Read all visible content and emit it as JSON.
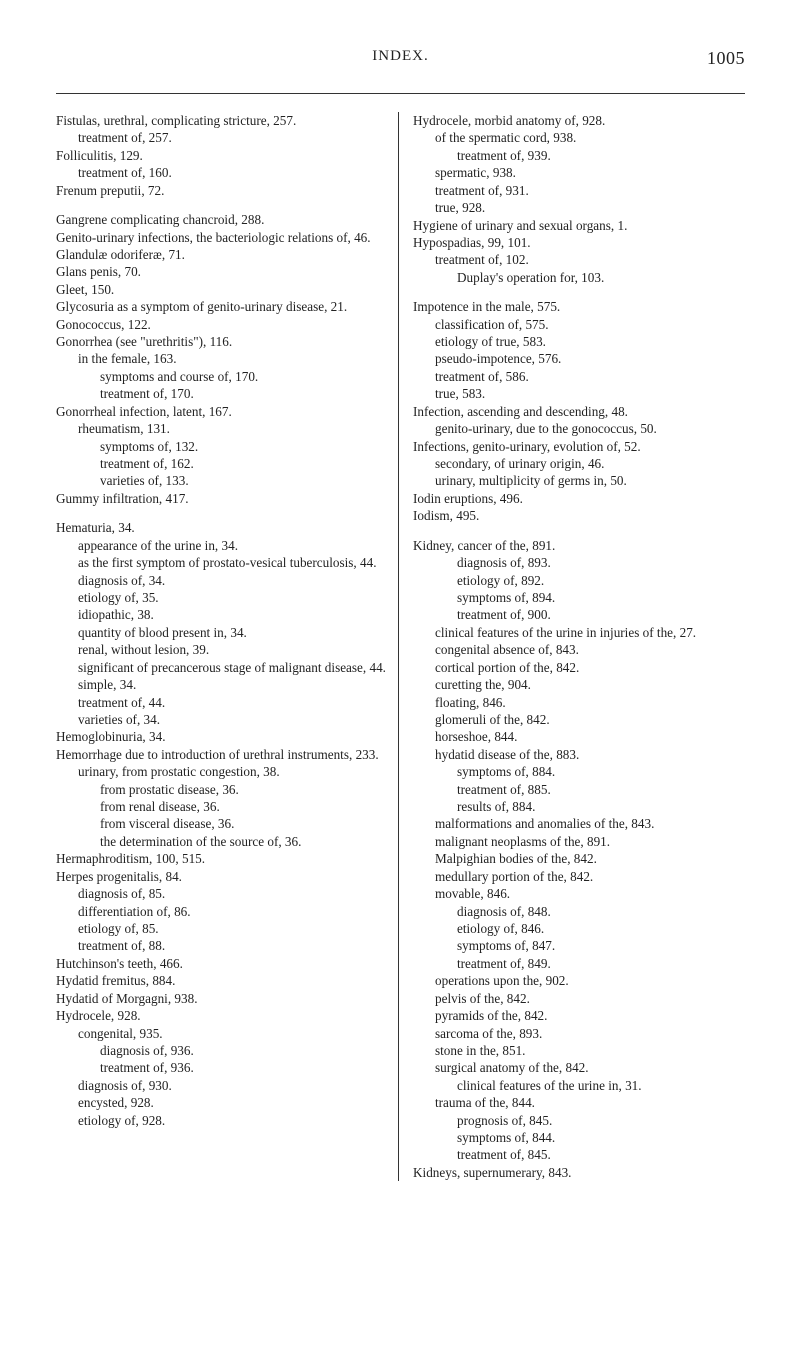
{
  "header": {
    "title": "INDEX.",
    "page_number": "1005"
  },
  "left_column": [
    {
      "text": "Fistulas, urethral, complicating stricture, 257.",
      "level": 0
    },
    {
      "text": "treatment of, 257.",
      "level": 1
    },
    {
      "text": "Folliculitis, 129.",
      "level": 0
    },
    {
      "text": "treatment of, 160.",
      "level": 1
    },
    {
      "text": "Frenum preputii, 72.",
      "level": 0
    },
    {
      "text": "",
      "level": 0,
      "gap": true
    },
    {
      "text": "Gangrene complicating chancroid, 288.",
      "level": 0
    },
    {
      "text": "Genito-urinary infections, the bacteriologic relations of, 46.",
      "level": 0
    },
    {
      "text": "Glandulæ odoriferæ, 71.",
      "level": 0
    },
    {
      "text": "Glans penis, 70.",
      "level": 0
    },
    {
      "text": "Gleet, 150.",
      "level": 0
    },
    {
      "text": "Glycosuria as a symptom of genito-urinary disease, 21.",
      "level": 0
    },
    {
      "text": "Gonococcus, 122.",
      "level": 0
    },
    {
      "text": "Gonorrhea (see \"urethritis\"), 116.",
      "level": 0
    },
    {
      "text": "in the female, 163.",
      "level": 1
    },
    {
      "text": "symptoms and course of, 170.",
      "level": 2
    },
    {
      "text": "treatment of, 170.",
      "level": 2
    },
    {
      "text": "Gonorrheal infection, latent, 167.",
      "level": 0
    },
    {
      "text": "rheumatism, 131.",
      "level": 1
    },
    {
      "text": "symptoms of, 132.",
      "level": 2
    },
    {
      "text": "treatment of, 162.",
      "level": 2
    },
    {
      "text": "varieties of, 133.",
      "level": 2
    },
    {
      "text": "Gummy infiltration, 417.",
      "level": 0
    },
    {
      "text": "",
      "level": 0,
      "gap": true
    },
    {
      "text": "Hematuria, 34.",
      "level": 0
    },
    {
      "text": "appearance of the urine in, 34.",
      "level": 1
    },
    {
      "text": "as the first symptom of prostato-vesical tuberculosis, 44.",
      "level": 1
    },
    {
      "text": "diagnosis of, 34.",
      "level": 1
    },
    {
      "text": "etiology of, 35.",
      "level": 1
    },
    {
      "text": "idiopathic, 38.",
      "level": 1
    },
    {
      "text": "quantity of blood present in, 34.",
      "level": 1
    },
    {
      "text": "renal, without lesion, 39.",
      "level": 1
    },
    {
      "text": "significant of precancerous stage of malignant disease, 44.",
      "level": 1
    },
    {
      "text": "simple, 34.",
      "level": 1
    },
    {
      "text": "treatment of, 44.",
      "level": 1
    },
    {
      "text": "varieties of, 34.",
      "level": 1
    },
    {
      "text": "Hemoglobinuria, 34.",
      "level": 0
    },
    {
      "text": "Hemorrhage due to introduction of urethral instruments, 233.",
      "level": 0
    },
    {
      "text": "urinary, from prostatic congestion, 38.",
      "level": 1
    },
    {
      "text": "from prostatic disease, 36.",
      "level": 2
    },
    {
      "text": "from renal disease, 36.",
      "level": 2
    },
    {
      "text": "from visceral disease, 36.",
      "level": 2
    },
    {
      "text": "the determination of the source of, 36.",
      "level": 2
    },
    {
      "text": "Hermaphroditism, 100, 515.",
      "level": 0
    },
    {
      "text": "Herpes progenitalis, 84.",
      "level": 0
    },
    {
      "text": "diagnosis of, 85.",
      "level": 1
    },
    {
      "text": "differentiation of, 86.",
      "level": 1
    },
    {
      "text": "etiology of, 85.",
      "level": 1
    },
    {
      "text": "treatment of, 88.",
      "level": 1
    },
    {
      "text": "Hutchinson's teeth, 466.",
      "level": 0
    },
    {
      "text": "Hydatid fremitus, 884.",
      "level": 0
    },
    {
      "text": "Hydatid of Morgagni, 938.",
      "level": 0
    },
    {
      "text": "Hydrocele, 928.",
      "level": 0
    },
    {
      "text": "congenital, 935.",
      "level": 1
    },
    {
      "text": "diagnosis of, 936.",
      "level": 2
    },
    {
      "text": "treatment of, 936.",
      "level": 2
    },
    {
      "text": "diagnosis of, 930.",
      "level": 1
    },
    {
      "text": "encysted, 928.",
      "level": 1
    },
    {
      "text": "etiology of, 928.",
      "level": 1
    }
  ],
  "right_column": [
    {
      "text": "Hydrocele, morbid anatomy of, 928.",
      "level": 0
    },
    {
      "text": "of the spermatic cord, 938.",
      "level": 1
    },
    {
      "text": "treatment of, 939.",
      "level": 2
    },
    {
      "text": "spermatic, 938.",
      "level": 1
    },
    {
      "text": "treatment of, 931.",
      "level": 1
    },
    {
      "text": "true, 928.",
      "level": 1
    },
    {
      "text": "Hygiene of urinary and sexual organs, 1.",
      "level": 0
    },
    {
      "text": "Hypospadias, 99, 101.",
      "level": 0
    },
    {
      "text": "treatment of, 102.",
      "level": 1
    },
    {
      "text": "Duplay's operation for, 103.",
      "level": 2
    },
    {
      "text": "",
      "level": 0,
      "gap": true
    },
    {
      "text": "Impotence in the male, 575.",
      "level": 0
    },
    {
      "text": "classification of, 575.",
      "level": 1
    },
    {
      "text": "etiology of true, 583.",
      "level": 1
    },
    {
      "text": "pseudo-impotence, 576.",
      "level": 1
    },
    {
      "text": "treatment of, 586.",
      "level": 1
    },
    {
      "text": "true, 583.",
      "level": 1
    },
    {
      "text": "Infection, ascending and descending, 48.",
      "level": 0
    },
    {
      "text": "genito-urinary, due to the gonococcus, 50.",
      "level": 1
    },
    {
      "text": "Infections, genito-urinary, evolution of, 52.",
      "level": 0
    },
    {
      "text": "secondary, of urinary origin, 46.",
      "level": 1
    },
    {
      "text": "urinary, multiplicity of germs in, 50.",
      "level": 1
    },
    {
      "text": "Iodin eruptions, 496.",
      "level": 0
    },
    {
      "text": "Iodism, 495.",
      "level": 0
    },
    {
      "text": "",
      "level": 0,
      "gap": true
    },
    {
      "text": "Kidney, cancer of the, 891.",
      "level": 0
    },
    {
      "text": "diagnosis of, 893.",
      "level": 2
    },
    {
      "text": "etiology of, 892.",
      "level": 2
    },
    {
      "text": "symptoms of, 894.",
      "level": 2
    },
    {
      "text": "treatment of, 900.",
      "level": 2
    },
    {
      "text": "clinical features of the urine in injuries of the, 27.",
      "level": 1
    },
    {
      "text": "congenital absence of, 843.",
      "level": 1
    },
    {
      "text": "cortical portion of the, 842.",
      "level": 1
    },
    {
      "text": "curetting the, 904.",
      "level": 1
    },
    {
      "text": "floating, 846.",
      "level": 1
    },
    {
      "text": "glomeruli of the, 842.",
      "level": 1
    },
    {
      "text": "horseshoe, 844.",
      "level": 1
    },
    {
      "text": "hydatid disease of the, 883.",
      "level": 1
    },
    {
      "text": "symptoms of, 884.",
      "level": 2
    },
    {
      "text": "treatment of, 885.",
      "level": 2
    },
    {
      "text": "results of, 884.",
      "level": 2
    },
    {
      "text": "malformations and anomalies of the, 843.",
      "level": 1
    },
    {
      "text": "malignant neoplasms of the, 891.",
      "level": 1
    },
    {
      "text": "Malpighian bodies of the, 842.",
      "level": 1
    },
    {
      "text": "medullary portion of the, 842.",
      "level": 1
    },
    {
      "text": "movable, 846.",
      "level": 1
    },
    {
      "text": "diagnosis of, 848.",
      "level": 2
    },
    {
      "text": "etiology of, 846.",
      "level": 2
    },
    {
      "text": "symptoms of, 847.",
      "level": 2
    },
    {
      "text": "treatment of, 849.",
      "level": 2
    },
    {
      "text": "operations upon the, 902.",
      "level": 1
    },
    {
      "text": "pelvis of the, 842.",
      "level": 1
    },
    {
      "text": "pyramids of the, 842.",
      "level": 1
    },
    {
      "text": "sarcoma of the, 893.",
      "level": 1
    },
    {
      "text": "stone in the, 851.",
      "level": 1
    },
    {
      "text": "surgical anatomy of the, 842.",
      "level": 1
    },
    {
      "text": "clinical features of the urine in, 31.",
      "level": 2
    },
    {
      "text": "trauma of the, 844.",
      "level": 1
    },
    {
      "text": "prognosis of, 845.",
      "level": 2
    },
    {
      "text": "symptoms of, 844.",
      "level": 2
    },
    {
      "text": "treatment of, 845.",
      "level": 2
    },
    {
      "text": "Kidneys, supernumerary, 843.",
      "level": 0
    }
  ]
}
